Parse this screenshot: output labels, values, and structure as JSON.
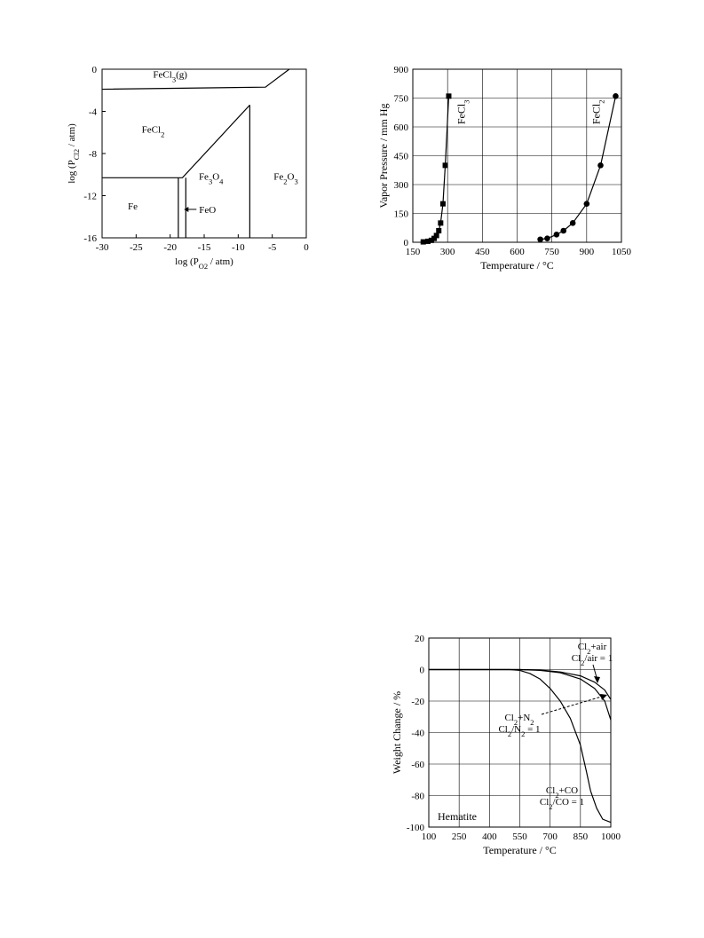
{
  "chart_data": [
    {
      "type": "diagram-phase",
      "x_axis": {
        "label_base": "log (P",
        "label_sub": "O2",
        "label_tail": " / atm)",
        "range": [
          -30,
          0
        ],
        "ticks": [
          -30,
          -25,
          -20,
          -15,
          -10,
          -5,
          0
        ]
      },
      "y_axis": {
        "label_base": "log (P",
        "label_sub": "Cl2",
        "label_tail": " / atm)",
        "range": [
          -16,
          0
        ],
        "ticks": [
          0,
          -4,
          -8,
          -12,
          -16
        ]
      },
      "regions": [
        {
          "id": "fecl3g",
          "base": "FeCl",
          "sub": "3",
          "tail": "(g)",
          "x": -20,
          "y": -0.8
        },
        {
          "id": "fecl2",
          "base": "FeCl",
          "sub": "2",
          "tail": "",
          "x": -22.5,
          "y": -6
        },
        {
          "id": "fe3o4",
          "base": "Fe",
          "sub": "3",
          "tail": "O",
          "sub2": "4",
          "x": -14,
          "y": -10.5
        },
        {
          "id": "fe2o3",
          "base": "Fe",
          "sub": "2",
          "tail": "O",
          "sub2": "3",
          "x": -3,
          "y": -10.5
        },
        {
          "id": "fe",
          "base": "Fe",
          "sub": "",
          "tail": "",
          "x": -25.5,
          "y": -13.3
        }
      ],
      "feo_label": "FeO",
      "boundaries": [
        [
          [
            -30,
            -1.9
          ],
          [
            -6,
            -1.7
          ],
          [
            -2.5,
            0
          ]
        ],
        [
          [
            -30,
            -10.3
          ],
          [
            -18.2,
            -10.3
          ],
          [
            -8.3,
            -3.4
          ]
        ],
        [
          [
            -18.8,
            -10.3
          ],
          [
            -18.8,
            -16
          ]
        ],
        [
          [
            -17.7,
            -10.3
          ],
          [
            -17.7,
            -16
          ]
        ],
        [
          [
            -8.3,
            -3.4
          ],
          [
            -8.3,
            -16
          ]
        ]
      ]
    },
    {
      "type": "line",
      "x_axis": {
        "label": "Temperature / °C",
        "range": [
          150,
          1050
        ],
        "ticks": [
          150,
          300,
          450,
          600,
          750,
          900,
          1050
        ]
      },
      "y_axis": {
        "label": "Vapor Pressure / mm Hg",
        "range": [
          0,
          900
        ],
        "ticks": [
          0,
          150,
          300,
          450,
          600,
          750,
          900
        ]
      },
      "grid": true,
      "series": [
        {
          "name": "FeCl3",
          "name_base": "FeCl",
          "name_sub": "3",
          "marker": "square",
          "points": [
            [
              195,
              2
            ],
            [
              215,
              5
            ],
            [
              230,
              10
            ],
            [
              242,
              20
            ],
            [
              252,
              35
            ],
            [
              262,
              60
            ],
            [
              270,
              100
            ],
            [
              280,
              200
            ],
            [
              290,
              400
            ],
            [
              305,
              760
            ]
          ]
        },
        {
          "name": "FeCl2",
          "name_base": "FeCl",
          "name_sub": "2",
          "marker": "circle",
          "points": [
            [
              700,
              15
            ],
            [
              730,
              20
            ],
            [
              770,
              40
            ],
            [
              800,
              60
            ],
            [
              840,
              100
            ],
            [
              900,
              200
            ],
            [
              960,
              400
            ],
            [
              1025,
              760
            ]
          ]
        }
      ]
    },
    {
      "type": "line",
      "x_axis": {
        "label": "Temperature / °C",
        "range": [
          100,
          1000
        ],
        "ticks": [
          100,
          250,
          400,
          550,
          700,
          850,
          1000
        ]
      },
      "y_axis": {
        "label": "Weight Change / %",
        "range": [
          -100,
          20
        ],
        "ticks": [
          20,
          0,
          -20,
          -40,
          -60,
          -80,
          -100
        ]
      },
      "grid": true,
      "sample_label": "Hematite",
      "series": [
        {
          "name": "Cl2+air",
          "line1": "Cl2+air",
          "line2": "Cl2/air = 1",
          "points": [
            [
              100,
              0
            ],
            [
              550,
              0
            ],
            [
              650,
              -0.3
            ],
            [
              750,
              -1.5
            ],
            [
              850,
              -4
            ],
            [
              920,
              -8
            ],
            [
              970,
              -13
            ],
            [
              1000,
              -19
            ]
          ]
        },
        {
          "name": "Cl2+N2",
          "line1": "Cl2+N2",
          "line2": "Cl2/N2 = 1",
          "points": [
            [
              100,
              0
            ],
            [
              550,
              0
            ],
            [
              650,
              -0.5
            ],
            [
              750,
              -2
            ],
            [
              850,
              -6
            ],
            [
              920,
              -12
            ],
            [
              970,
              -20
            ],
            [
              1000,
              -32
            ]
          ]
        },
        {
          "name": "Cl2+CO",
          "line1": "Cl2+CO",
          "line2": "Cl2/CO = 1",
          "points": [
            [
              100,
              0
            ],
            [
              500,
              0
            ],
            [
              550,
              -0.5
            ],
            [
              600,
              -2.5
            ],
            [
              650,
              -6
            ],
            [
              700,
              -12
            ],
            [
              750,
              -20
            ],
            [
              800,
              -31
            ],
            [
              850,
              -48
            ],
            [
              880,
              -65
            ],
            [
              900,
              -77
            ],
            [
              930,
              -88
            ],
            [
              960,
              -95
            ],
            [
              1000,
              -97
            ]
          ]
        }
      ]
    }
  ]
}
